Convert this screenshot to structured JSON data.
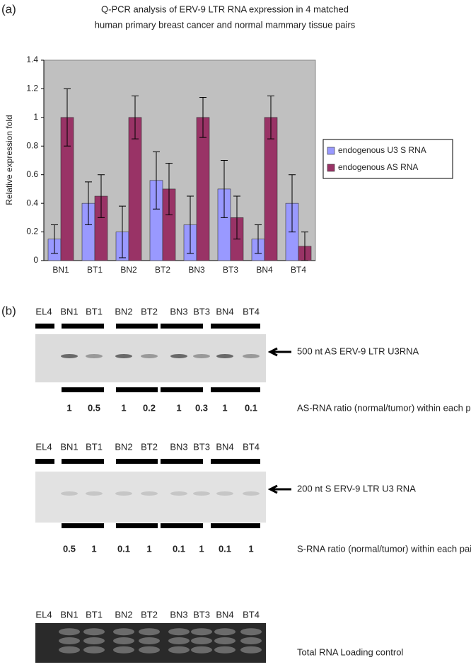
{
  "chart_data": {
    "type": "bar",
    "panel_label": "(a)",
    "title": [
      "Q-PCR analysis of ERV-9 LTR RNA expression in 4 matched",
      "human primary breast cancer and normal mammary tissue pairs"
    ],
    "y_label": "Relative expression fold",
    "categories": [
      "BN1",
      "BT1",
      "BN2",
      "BT2",
      "BN3",
      "BT3",
      "BN4",
      "BT4"
    ],
    "series": [
      {
        "name": "endogenous U3 S RNA",
        "color": "#9999ff",
        "values": [
          0.15,
          0.4,
          0.2,
          0.56,
          0.25,
          0.5,
          0.15,
          0.4
        ],
        "errors": [
          0.1,
          0.15,
          0.18,
          0.2,
          0.2,
          0.2,
          0.1,
          0.2
        ]
      },
      {
        "name": "endogenous AS RNA",
        "color": "#993366",
        "values": [
          1,
          0.45,
          1,
          0.5,
          1,
          0.3,
          1,
          0.1
        ],
        "errors": [
          0.2,
          0.15,
          0.15,
          0.18,
          0.14,
          0.15,
          0.15,
          0.1
        ]
      }
    ],
    "ylim": [
      0,
      1.4
    ],
    "yticks": [
      0,
      0.2,
      0.4,
      0.6,
      0.8,
      1,
      1.2,
      1.4
    ],
    "grid": false,
    "plot_background": "#c0c0c0",
    "legend": "right"
  },
  "panel_b": {
    "label": "(b)",
    "blots": [
      {
        "lanes": [
          "EL4",
          "BN1",
          "BT1",
          "BN2",
          "BT2",
          "BN3",
          "BT3",
          "BN4",
          "BT4"
        ],
        "band_label": "500 nt AS ERV-9 LTR U3RNA",
        "ratios": [
          1,
          0.5,
          1,
          0.2,
          1,
          0.3,
          1,
          0.1
        ],
        "ratio_label": "AS-RNA ratio (normal/tumor) within each pair"
      },
      {
        "lanes": [
          "EL4",
          "BN1",
          "BT1",
          "BN2",
          "BT2",
          "BN3",
          "BT3",
          "BN4",
          "BT4"
        ],
        "band_label": "200 nt S ERV-9 LTR U3 RNA",
        "ratios": [
          0.5,
          1,
          0.1,
          1,
          0.1,
          1,
          0.1,
          1
        ],
        "ratio_label": "S-RNA ratio (normal/tumor) within each pair"
      },
      {
        "lanes": [
          "EL4",
          "BN1",
          "BT1",
          "BN2",
          "BT2",
          "BN3",
          "BT3",
          "BN4",
          "BT4"
        ],
        "band_label": "Total RNA Loading control"
      }
    ]
  }
}
